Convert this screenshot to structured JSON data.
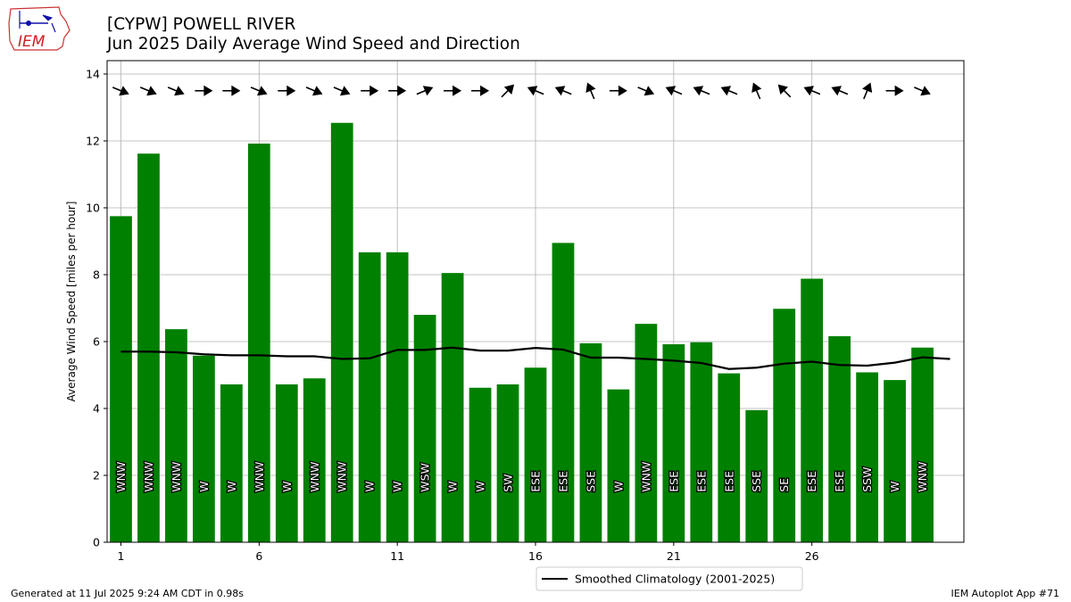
{
  "header": {
    "title_line1": "[CYPW] POWELL RIVER",
    "title_line2": "Jun 2025 Daily Average Wind Speed and Direction",
    "logo_text": "IEM"
  },
  "footer": {
    "generated": "Generated at 11 Jul 2025 9:24 AM CDT in 0.98s",
    "app": "IEM Autoplot App #71"
  },
  "colors": {
    "bar": "#008000",
    "climatology": "#000000",
    "grid": "#b0b0b0",
    "arrow": "#000000"
  },
  "chart_data": {
    "type": "bar",
    "title": "[CYPW] POWELL RIVER\nJun 2025 Daily Average Wind Speed and Direction",
    "ylabel": "Average Wind Speed [miles per hour]",
    "xlabel": "",
    "ylim": [
      0,
      14.4
    ],
    "xlim": [
      0.5,
      31.5
    ],
    "yticks": [
      0,
      2,
      4,
      6,
      8,
      10,
      12,
      14
    ],
    "xticks": [
      1,
      6,
      11,
      16,
      21,
      26
    ],
    "grid": true,
    "legend_position": "bottom-center",
    "days": [
      1,
      2,
      3,
      4,
      5,
      6,
      7,
      8,
      9,
      10,
      11,
      12,
      13,
      14,
      15,
      16,
      17,
      18,
      19,
      20,
      21,
      22,
      23,
      24,
      25,
      26,
      27,
      28,
      29,
      30
    ],
    "values": [
      9.75,
      11.62,
      6.37,
      5.58,
      4.72,
      11.92,
      4.72,
      4.9,
      12.54,
      8.67,
      8.67,
      6.8,
      8.05,
      4.62,
      4.72,
      5.22,
      8.95,
      5.95,
      4.57,
      6.53,
      5.92,
      5.98,
      5.05,
      3.95,
      6.98,
      7.88,
      6.16,
      5.08,
      4.85,
      5.82
    ],
    "directions": [
      "WNW",
      "WNW",
      "WNW",
      "W",
      "W",
      "WNW",
      "W",
      "WNW",
      "WNW",
      "W",
      "W",
      "WSW",
      "W",
      "W",
      "SW",
      "ESE",
      "ESE",
      "SSE",
      "W",
      "WNW",
      "ESE",
      "ESE",
      "ESE",
      "SSE",
      "SE",
      "ESE",
      "ESE",
      "SSW",
      "W",
      "WNW"
    ],
    "climatology": {
      "name": "Smoothed Climatology (2001-2025)",
      "values": [
        5.7,
        5.7,
        5.68,
        5.62,
        5.59,
        5.59,
        5.56,
        5.56,
        5.48,
        5.5,
        5.75,
        5.75,
        5.82,
        5.73,
        5.73,
        5.81,
        5.76,
        5.52,
        5.52,
        5.48,
        5.43,
        5.36,
        5.18,
        5.22,
        5.34,
        5.4,
        5.3,
        5.28,
        5.37,
        5.53,
        5.48
      ]
    }
  }
}
